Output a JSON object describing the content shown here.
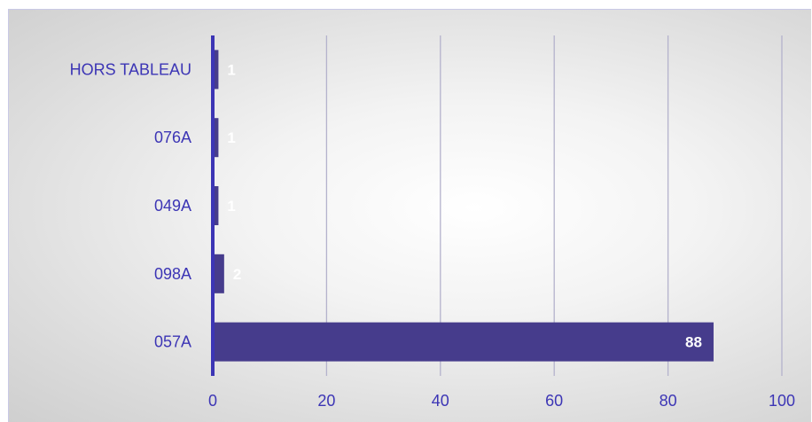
{
  "chart_data": {
    "type": "bar",
    "orientation": "horizontal",
    "categories": [
      "057A",
      "098A",
      "049A",
      "076A",
      "HORS TABLEAU"
    ],
    "values": [
      88,
      2,
      1,
      1,
      1
    ],
    "xlim": [
      0,
      100
    ],
    "xticks": [
      0,
      20,
      40,
      60,
      80,
      100
    ],
    "title": "",
    "xlabel": "",
    "ylabel": "",
    "grid": "vertical",
    "legend": "none",
    "colors": {
      "bar": "#463c8c",
      "axis": "#3c35b5",
      "gridline": "#b4b2cc",
      "text": "#3c35b5",
      "data_label": "#ffffff"
    }
  }
}
